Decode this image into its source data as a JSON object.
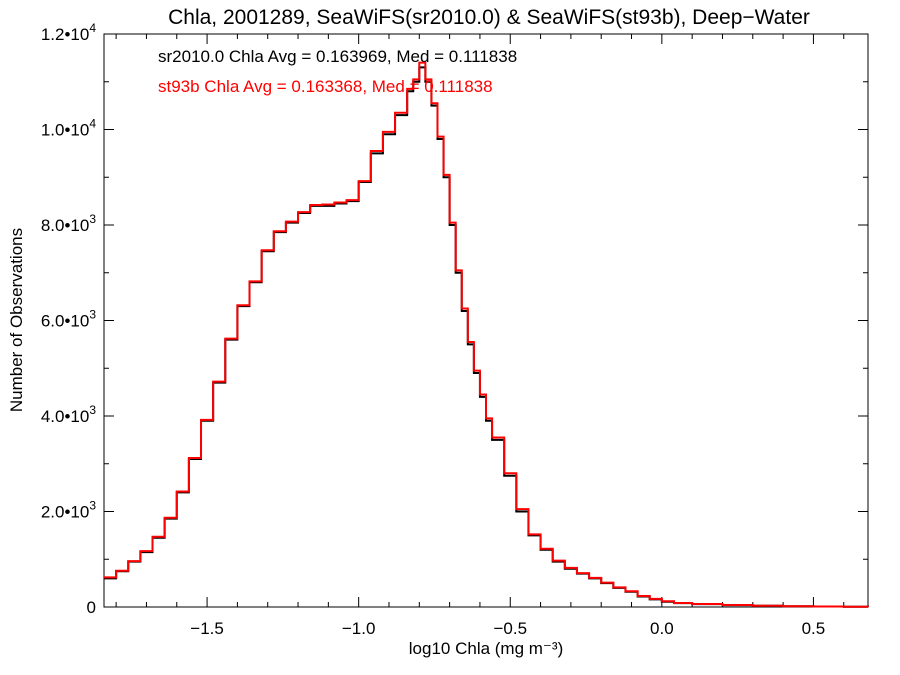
{
  "chart_data": {
    "type": "line",
    "step": true,
    "title": "Chla, 2001289, SeaWiFS(sr2010.0) & SeaWiFS(st93b), Deep−Water",
    "xlabel": "log10 Chla (mg m⁻³)",
    "ylabel": "Number of Observations",
    "xlim": [
      -1.84,
      0.68
    ],
    "ylim": [
      0,
      12000
    ],
    "x_ticks": [
      {
        "value": -1.5,
        "label": "−1.5"
      },
      {
        "value": -1.0,
        "label": "−1.0"
      },
      {
        "value": -0.5,
        "label": "−0.5"
      },
      {
        "value": 0.0,
        "label": "0.0"
      },
      {
        "value": 0.5,
        "label": "0.5"
      }
    ],
    "y_ticks": [
      {
        "value": 0,
        "mantissa": "0",
        "exp": ""
      },
      {
        "value": 2000,
        "mantissa": "2.0•10",
        "exp": "3"
      },
      {
        "value": 4000,
        "mantissa": "4.0•10",
        "exp": "3"
      },
      {
        "value": 6000,
        "mantissa": "6.0•10",
        "exp": "3"
      },
      {
        "value": 8000,
        "mantissa": "8.0•10",
        "exp": "3"
      },
      {
        "value": 10000,
        "mantissa": "1.0•10",
        "exp": "4"
      },
      {
        "value": 12000,
        "mantissa": "1.2•10",
        "exp": "4"
      }
    ],
    "annotations": [
      {
        "text": "sr2010.0 Chla Avg = 0.163969, Med = 0.111838",
        "color": "#000000"
      },
      {
        "text": "st93b Chla Avg = 0.163368, Med = 0.111838",
        "color": "#ff0000"
      }
    ],
    "series": [
      {
        "color": "#000000",
        "x": [
          -1.84,
          -1.8,
          -1.76,
          -1.72,
          -1.68,
          -1.64,
          -1.6,
          -1.56,
          -1.52,
          -1.48,
          -1.44,
          -1.4,
          -1.36,
          -1.32,
          -1.28,
          -1.24,
          -1.2,
          -1.16,
          -1.12,
          -1.08,
          -1.04,
          -1.0,
          -0.96,
          -0.92,
          -0.88,
          -0.84,
          -0.82,
          -0.8,
          -0.78,
          -0.76,
          -0.74,
          -0.72,
          -0.7,
          -0.68,
          -0.66,
          -0.64,
          -0.62,
          -0.6,
          -0.58,
          -0.56,
          -0.52,
          -0.48,
          -0.44,
          -0.4,
          -0.36,
          -0.32,
          -0.28,
          -0.24,
          -0.2,
          -0.16,
          -0.12,
          -0.08,
          -0.04,
          0.0,
          0.04,
          0.1,
          0.2,
          0.3,
          0.4,
          0.5,
          0.6,
          0.68
        ],
        "y": [
          600,
          750,
          950,
          1150,
          1450,
          1850,
          2400,
          3100,
          3900,
          4700,
          5600,
          6300,
          6800,
          7450,
          7850,
          8050,
          8250,
          8400,
          8400,
          8450,
          8500,
          8900,
          9500,
          9900,
          10300,
          10800,
          11000,
          11300,
          11000,
          10500,
          9800,
          9000,
          8000,
          7000,
          6200,
          5500,
          4900,
          4400,
          3900,
          3500,
          2750,
          2000,
          1500,
          1200,
          950,
          800,
          700,
          600,
          500,
          400,
          320,
          220,
          160,
          110,
          80,
          60,
          40,
          25,
          15,
          10,
          5,
          3
        ]
      },
      {
        "color": "#ff0000",
        "x": [
          -1.84,
          -1.8,
          -1.76,
          -1.72,
          -1.68,
          -1.64,
          -1.6,
          -1.56,
          -1.52,
          -1.48,
          -1.44,
          -1.4,
          -1.36,
          -1.32,
          -1.28,
          -1.24,
          -1.2,
          -1.16,
          -1.12,
          -1.08,
          -1.04,
          -1.0,
          -0.96,
          -0.92,
          -0.88,
          -0.84,
          -0.82,
          -0.8,
          -0.78,
          -0.76,
          -0.74,
          -0.72,
          -0.7,
          -0.68,
          -0.66,
          -0.64,
          -0.62,
          -0.6,
          -0.58,
          -0.56,
          -0.52,
          -0.48,
          -0.44,
          -0.4,
          -0.36,
          -0.32,
          -0.28,
          -0.24,
          -0.2,
          -0.16,
          -0.12,
          -0.08,
          -0.04,
          0.0,
          0.04,
          0.1,
          0.2,
          0.3,
          0.4,
          0.5,
          0.6,
          0.68
        ],
        "y": [
          620,
          760,
          960,
          1170,
          1470,
          1870,
          2420,
          3120,
          3920,
          4720,
          5620,
          6320,
          6820,
          7470,
          7870,
          8070,
          8270,
          8420,
          8430,
          8470,
          8520,
          8920,
          9550,
          9950,
          10350,
          10850,
          11050,
          11400,
          11050,
          10550,
          9850,
          9050,
          8050,
          7050,
          6250,
          5550,
          4950,
          4450,
          3950,
          3550,
          2800,
          2050,
          1520,
          1220,
          970,
          820,
          710,
          610,
          510,
          410,
          330,
          230,
          170,
          120,
          85,
          62,
          42,
          26,
          16,
          11,
          5,
          3
        ]
      }
    ]
  }
}
